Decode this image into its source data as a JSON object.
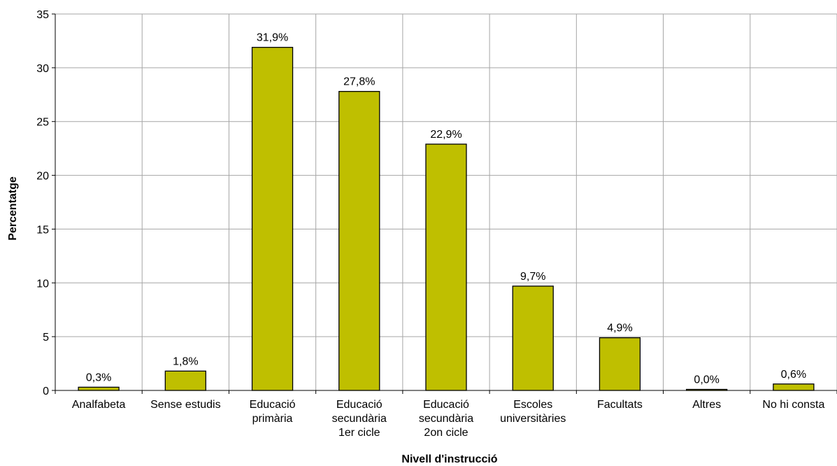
{
  "chart_data": {
    "type": "bar",
    "categories": [
      [
        "Analfabeta"
      ],
      [
        "Sense estudis"
      ],
      [
        "Educació",
        "primària"
      ],
      [
        "Educació",
        "secundària",
        "1er cicle"
      ],
      [
        "Educació",
        "secundària",
        "2on cicle"
      ],
      [
        "Escoles",
        "universitàries"
      ],
      [
        "Facultats"
      ],
      [
        "Altres"
      ],
      [
        "No hi consta"
      ]
    ],
    "values": [
      0.3,
      1.8,
      31.9,
      27.8,
      22.9,
      9.7,
      4.9,
      0.0,
      0.6
    ],
    "data_labels": [
      "0,3%",
      "1,8%",
      "31,9%",
      "27,8%",
      "22,9%",
      "9,7%",
      "4,9%",
      "0,0%",
      "0,6%"
    ],
    "xlabel": "Nivell d'instrucció",
    "ylabel": "Percentatge",
    "ylim": [
      0,
      35
    ],
    "yticks": [
      0,
      5,
      10,
      15,
      20,
      25,
      30,
      35
    ],
    "grid": true,
    "legend": "none",
    "bar_color": "#bfbf00",
    "bar_edge_color": "#000000",
    "grid_color": "#a6a6a6"
  }
}
